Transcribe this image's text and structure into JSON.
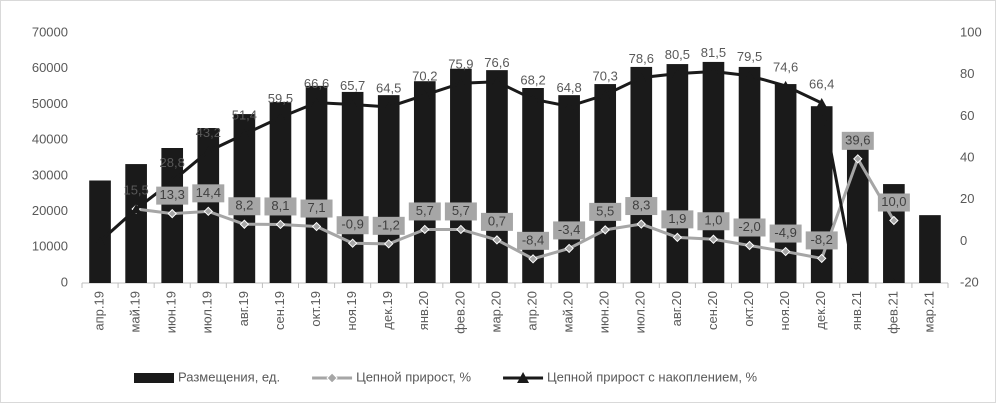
{
  "chart_data": {
    "type": "bar_line",
    "categories": [
      "апр.19",
      "май.19",
      "июн.19",
      "июл.19",
      "авг.19",
      "сен.19",
      "окт.19",
      "ноя.19",
      "дек.19",
      "янв.20",
      "фев.20",
      "мар.20",
      "апр.20",
      "май.20",
      "июн.20",
      "июл.20",
      "авг.20",
      "сен.20",
      "окт.20",
      "ноя.20",
      "дек.20",
      "янв.21",
      "фев.21",
      "мар.21"
    ],
    "series": [
      {
        "name": "Размещения, ед.",
        "type": "bar",
        "color": "#1a1a1a",
        "values": [
          28700,
          33300,
          37800,
          43400,
          47300,
          50700,
          55200,
          53500,
          52600,
          56500,
          60000,
          59600,
          54600,
          52600,
          55700,
          60500,
          61300,
          61900,
          60500,
          55700,
          49500,
          38900,
          27700,
          19000
        ]
      },
      {
        "name": "Цепной прирост, %",
        "type": "line",
        "axis": "y2",
        "color": "#a6a6a6",
        "marker": "diamond",
        "values": [
          null,
          15.5,
          13.3,
          14.4,
          8.2,
          8.1,
          7.1,
          -0.9,
          -1.2,
          5.7,
          5.7,
          0.7,
          -8.4,
          -3.4,
          5.5,
          8.3,
          1.9,
          1.0,
          -2.0,
          -4.9,
          -8.2,
          39.6,
          10.0,
          null
        ],
        "value_labels": [
          null,
          null,
          "13,3",
          "14,4",
          "8,2",
          "8,1",
          "7,1",
          "-0,9",
          "-1,2",
          "5,7",
          "5,7",
          "0,7",
          "-8,4",
          "-3,4",
          "5,5",
          "8,3",
          "1,9",
          "1,0",
          "-2,0",
          "-4,9",
          "-8,2",
          "39,6",
          "10,0",
          null
        ]
      },
      {
        "name": "Цепной прирост с накоплением, %",
        "type": "line",
        "axis": "y2",
        "color": "#1a1a1a",
        "marker": "triangle",
        "values": [
          0,
          15.5,
          28.8,
          43.2,
          51.4,
          59.5,
          66.6,
          65.7,
          64.5,
          70.2,
          75.9,
          76.6,
          68.2,
          64.8,
          70.3,
          78.6,
          80.5,
          81.5,
          79.5,
          74.6,
          66.4,
          -25,
          -20,
          null
        ],
        "value_labels": [
          null,
          "15,5",
          "28,8",
          "43,2",
          "51,4",
          "59,5",
          "66,6",
          "65,7",
          "64,5",
          "70,2",
          "75,9",
          "76,6",
          "68,2",
          "64,8",
          "70,3",
          "78,6",
          "80,5",
          "81,5",
          "79,5",
          "74,6",
          "66,4",
          null,
          null,
          null
        ]
      }
    ],
    "ylim": [
      0,
      70000
    ],
    "yticks": [
      0,
      10000,
      20000,
      30000,
      40000,
      50000,
      60000,
      70000
    ],
    "y2lim": [
      -20,
      100
    ],
    "y2ticks": [
      -20,
      0,
      20,
      40,
      60,
      80,
      100
    ],
    "legend": "bottom"
  }
}
